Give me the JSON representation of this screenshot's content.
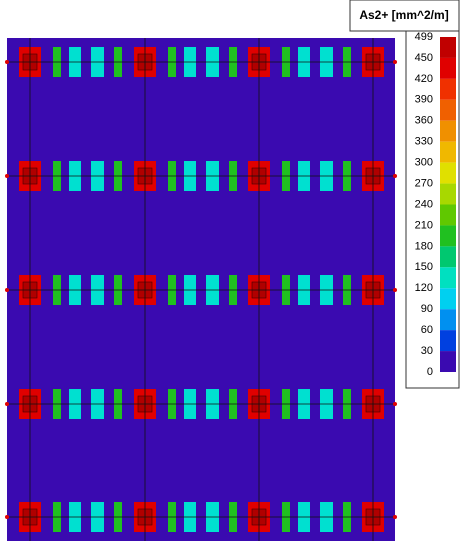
{
  "legend": {
    "title": "As2+ [mm^2/m]",
    "labels": [
      499,
      450,
      420,
      390,
      360,
      330,
      300,
      270,
      240,
      210,
      180,
      150,
      120,
      90,
      60,
      30,
      0
    ],
    "colors": [
      "#c00000",
      "#e00000",
      "#f03000",
      "#f06000",
      "#f09000",
      "#f0b800",
      "#e0e000",
      "#a8d800",
      "#60c800",
      "#20c020",
      "#00c870",
      "#00e0c0",
      "#00d0f0",
      "#0090f0",
      "#0040e0",
      "#3a0ab0"
    ]
  }
}
